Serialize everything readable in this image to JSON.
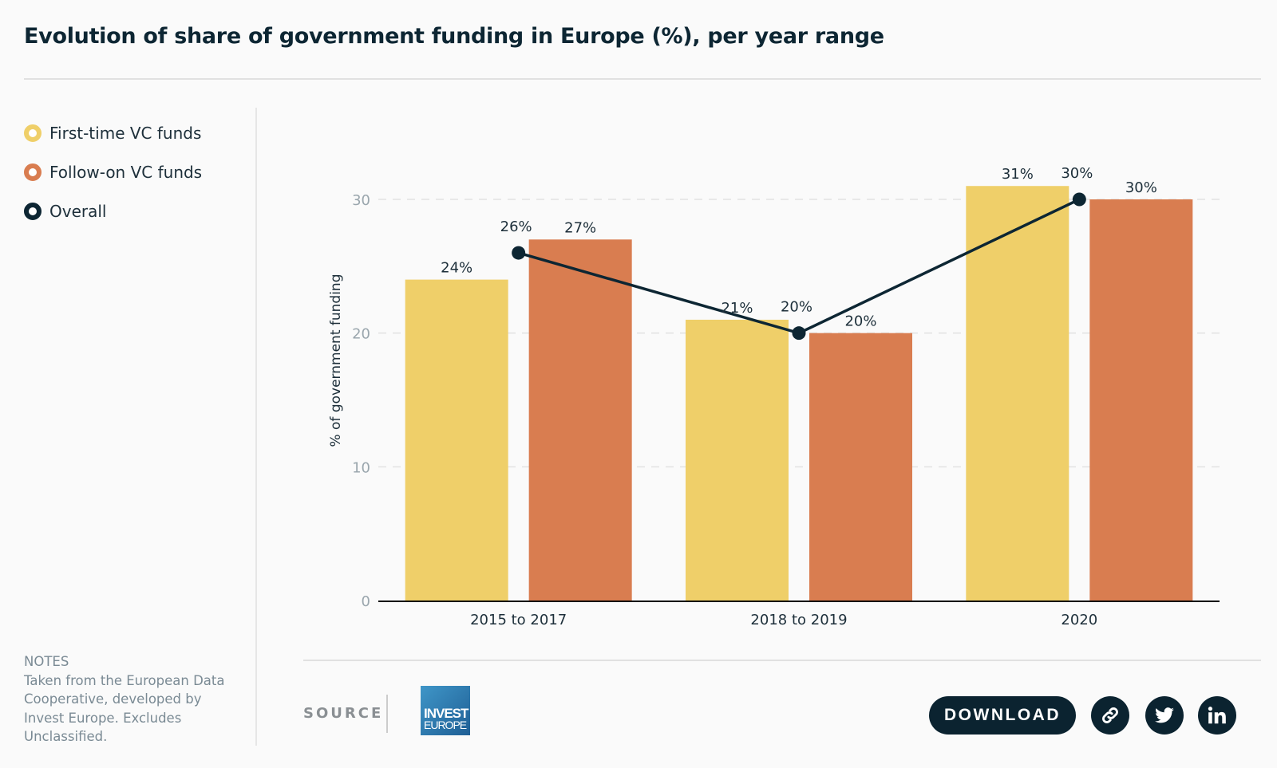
{
  "header": {
    "title": "Evolution of share of government funding in Europe (%), per year range"
  },
  "legend": [
    {
      "label": "First-time VC funds",
      "color": "#efcf69"
    },
    {
      "label": "Follow-on VC funds",
      "color": "#d97d50"
    },
    {
      "label": "Overall",
      "color": "#0d2633"
    }
  ],
  "notes": {
    "title": "NOTES",
    "text": "Taken from the European Data Cooperative, developed by Invest Europe. Excludes Unclassified."
  },
  "footer": {
    "source_label": "SOURCE",
    "logo_line1": "INVEST",
    "logo_line2": "EUROPE",
    "download_label": "DOWNLOAD",
    "icons": [
      "link-icon",
      "twitter-icon",
      "linkedin-icon"
    ]
  },
  "chart_data": {
    "type": "bar",
    "title": "Evolution of share of government funding in Europe (%), per year range",
    "xlabel": "",
    "ylabel": "% of government funding",
    "ylim": [
      0,
      30
    ],
    "yticks": [
      0,
      10,
      20,
      30
    ],
    "grid": true,
    "legend_position": "left",
    "categories": [
      "2015 to 2017",
      "2018 to 2019",
      "2020"
    ],
    "series": [
      {
        "name": "First-time VC funds",
        "type": "bar",
        "color": "#efcf69",
        "values": [
          24,
          21,
          31
        ],
        "labels": [
          "24%",
          "21%",
          "31%"
        ]
      },
      {
        "name": "Follow-on VC funds",
        "type": "bar",
        "color": "#d97d50",
        "values": [
          27,
          20,
          30
        ],
        "labels": [
          "27%",
          "20%",
          "30%"
        ]
      },
      {
        "name": "Overall",
        "type": "line",
        "color": "#0d2633",
        "values": [
          26,
          20,
          30
        ],
        "labels": [
          "26%",
          "20%",
          "30%"
        ]
      }
    ]
  }
}
